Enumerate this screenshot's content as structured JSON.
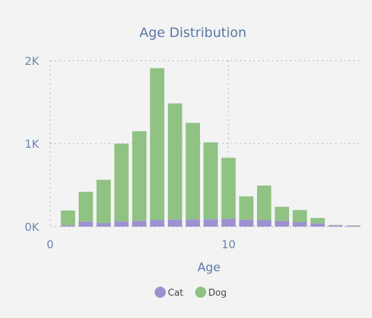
{
  "chart_data": {
    "type": "bar",
    "stacked": true,
    "title": "Age Distribution",
    "xlabel": "Age",
    "ylabel": "",
    "xlim": [
      0,
      17.5
    ],
    "ylim": [
      0,
      2000
    ],
    "x_ticks": [
      0,
      10
    ],
    "y_ticks": [
      {
        "value": 0,
        "label": "0K"
      },
      {
        "value": 1000,
        "label": "1K"
      },
      {
        "value": 2000,
        "label": "2K"
      }
    ],
    "grid": true,
    "legend_position": "bottom-center",
    "x": [
      1,
      2,
      3,
      4,
      5,
      6,
      7,
      8,
      9,
      10,
      11,
      12,
      13,
      14,
      15,
      16,
      17
    ],
    "series": [
      {
        "name": "Cat",
        "color": "#9d92cf",
        "values": [
          15,
          60,
          45,
          65,
          70,
          80,
          85,
          90,
          90,
          95,
          85,
          80,
          70,
          55,
          40,
          15,
          10
        ]
      },
      {
        "name": "Dog",
        "color": "#8fc283",
        "values": [
          180,
          360,
          520,
          935,
          1080,
          1830,
          1400,
          1160,
          925,
          735,
          280,
          415,
          170,
          145,
          65,
          5,
          5
        ]
      }
    ]
  }
}
